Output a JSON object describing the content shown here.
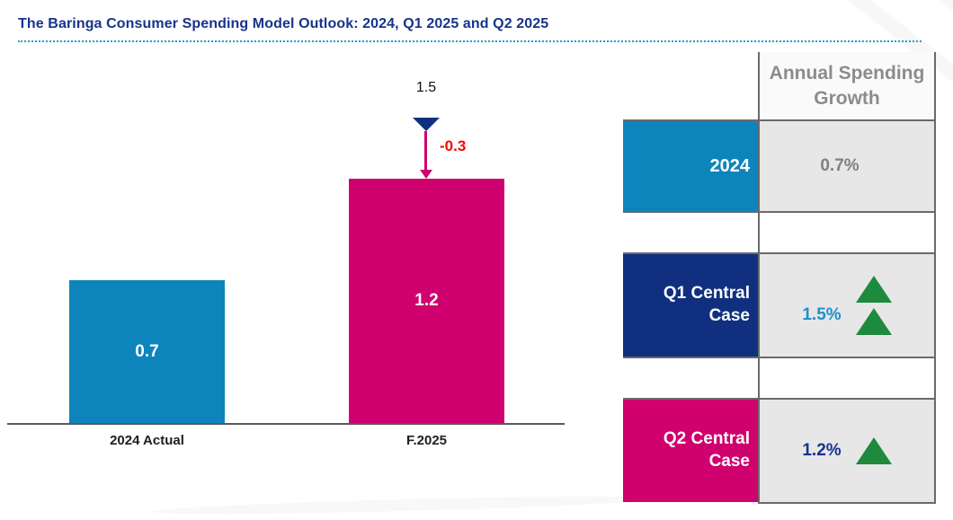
{
  "title": "The Baringa Consumer Spending Model Outlook: 2024, Q1 2025 and Q2 2025",
  "chart_data": {
    "type": "bar",
    "categories": [
      "2024 Actual",
      "F.2025"
    ],
    "values": [
      0.7,
      1.2
    ],
    "bar_labels": [
      "0.7",
      "1.2"
    ],
    "bar_colors": [
      "#0e84bd",
      "#d0006e"
    ],
    "xlabel": "",
    "ylabel": "",
    "ylim": [
      0,
      1.7
    ],
    "grid": false,
    "legend": "none",
    "annotation": {
      "reference_value": 1.5,
      "reference_label": "1.5",
      "delta_label": "-0.3",
      "delta_color": "#fe0000",
      "marker_color": "#10307f",
      "arrow_color": "#d0006e"
    }
  },
  "table": {
    "header": "Annual Spending Growth",
    "arrow_color": "#1e8a3e",
    "rows": [
      {
        "label": "2024",
        "value": "0.7%",
        "label_bg": "#0e84bd",
        "value_color": "#808080",
        "up_arrows": 0
      },
      {
        "label": "Q1 Central Case",
        "value": "1.5%",
        "label_bg": "#10307f",
        "value_color": "#1e90cd",
        "up_arrows": 2
      },
      {
        "label": "Q2 Central Case",
        "value": "1.2%",
        "label_bg": "#d0006e",
        "value_color": "#17338c",
        "up_arrows": 1
      }
    ]
  },
  "colors": {
    "title": "#17338c",
    "dotted_rule": "#1e9cd7",
    "axis": "#595959",
    "table_border": "#6a6a6a",
    "value_cell_bg": "#e7e7e7",
    "header_cell_bg": "#fafafa",
    "header_text": "#8c8c8c"
  }
}
